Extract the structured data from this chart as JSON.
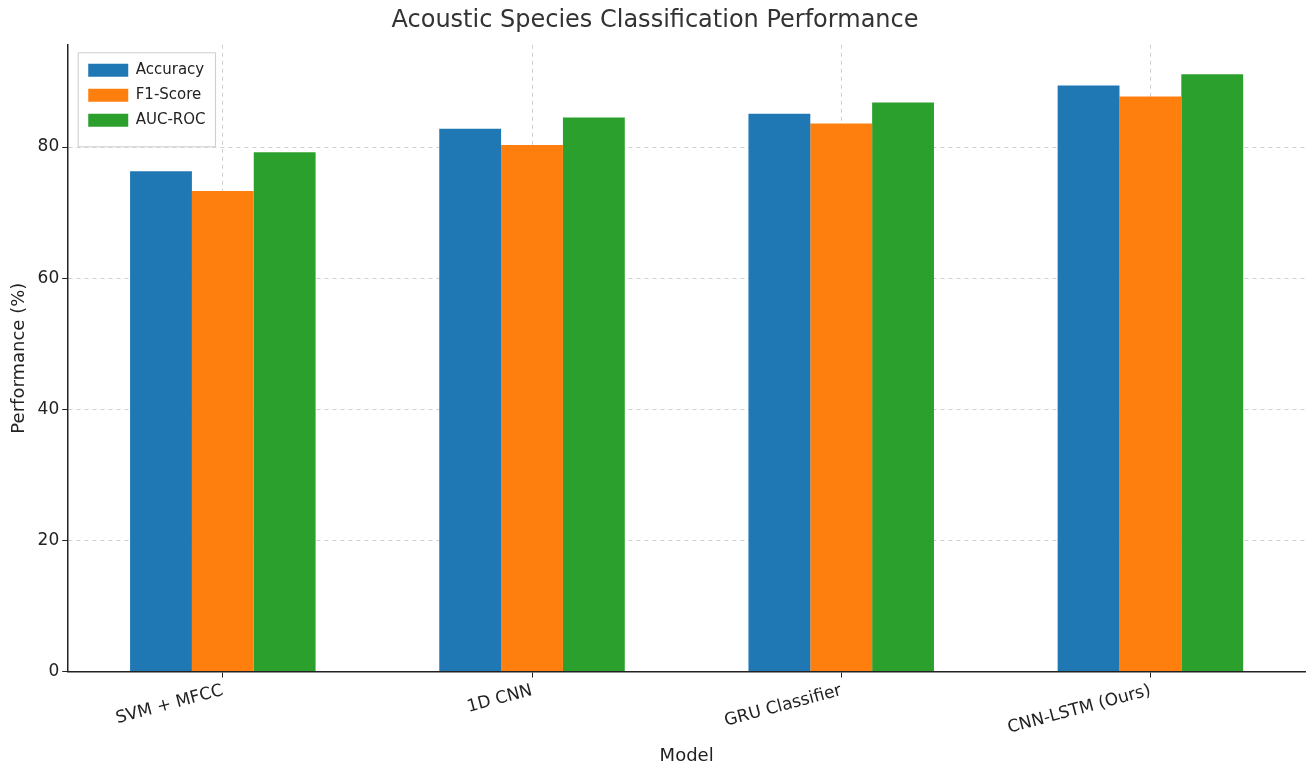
{
  "chart_data": {
    "type": "bar",
    "title": "Acoustic Species Classification Performance",
    "xlabel": "Model",
    "ylabel": "Performance (%)",
    "categories": [
      "SVM + MFCC",
      "1D CNN",
      "GRU Classifier",
      "CNN-LSTM (Ours)"
    ],
    "series": [
      {
        "name": "Accuracy",
        "color": "#1f77b4",
        "values": [
          76.3,
          82.8,
          85.1,
          89.4
        ]
      },
      {
        "name": "F1-Score",
        "color": "#ff7f0e",
        "values": [
          73.3,
          80.3,
          83.6,
          87.7
        ]
      },
      {
        "name": "AUC-ROC",
        "color": "#2ca02c",
        "values": [
          79.2,
          84.5,
          86.8,
          91.1
        ]
      }
    ],
    "ylim": [
      0,
      95.6
    ],
    "yticks": [
      0,
      20,
      40,
      60,
      80
    ],
    "grid": true,
    "legend": "top left"
  }
}
